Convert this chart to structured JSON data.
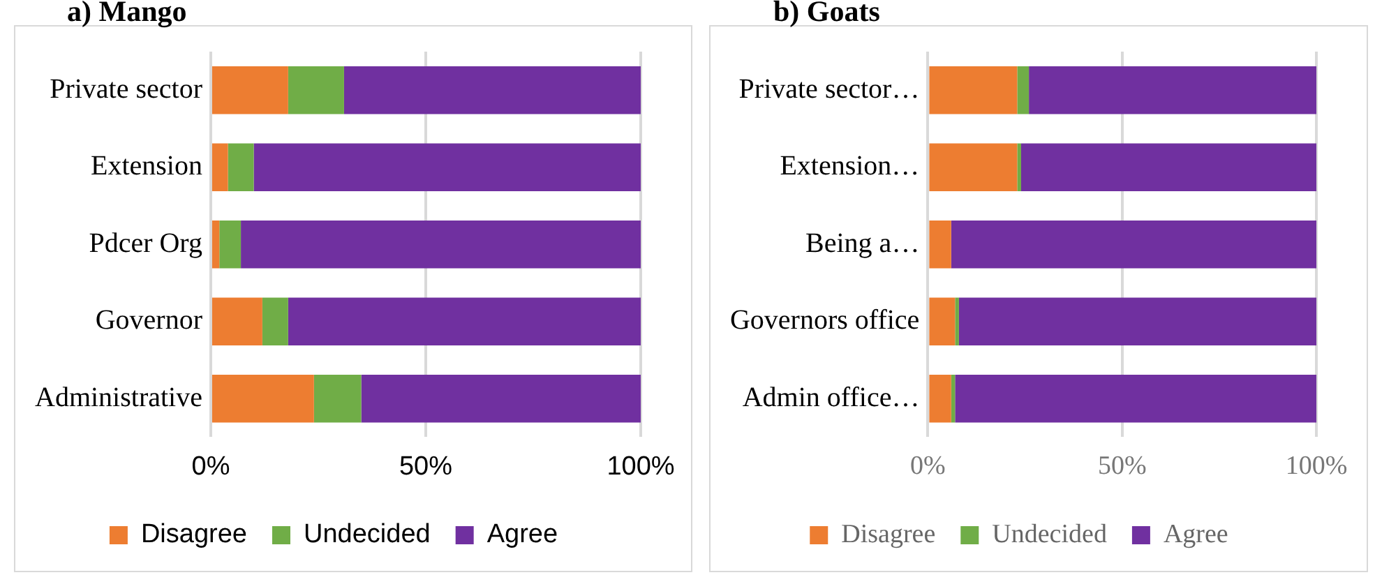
{
  "chart_data": [
    {
      "type": "bar",
      "title": "a) Mango",
      "orientation": "horizontal",
      "stacked": true,
      "categories": [
        "Private sector",
        "Extension",
        "Pdcer Org",
        "Governor",
        "Administrative"
      ],
      "series": [
        {
          "name": "Disagree",
          "color": "#ed7d31",
          "values": [
            18,
            4,
            2,
            12,
            24
          ]
        },
        {
          "name": "Undecided",
          "color": "#70ad47",
          "values": [
            13,
            6,
            5,
            6,
            11
          ]
        },
        {
          "name": "Agree",
          "color": "#7030a0",
          "values": [
            69,
            90,
            93,
            82,
            65
          ]
        }
      ],
      "xlim": [
        0,
        100
      ],
      "xticks": [
        {
          "value": 0,
          "label": "0%"
        },
        {
          "value": 50,
          "label": "50%"
        },
        {
          "value": 100,
          "label": "100%"
        }
      ],
      "grid": "x",
      "legend": "bottom"
    },
    {
      "type": "bar",
      "title": "b) Goats",
      "orientation": "horizontal",
      "stacked": true,
      "categories": [
        "Private sector…",
        "Extension…",
        "Being a…",
        "Governors office",
        "Admin office…"
      ],
      "series": [
        {
          "name": "Disagree",
          "color": "#ed7d31",
          "values": [
            23,
            23,
            6,
            7,
            6
          ]
        },
        {
          "name": "Undecided",
          "color": "#70ad47",
          "values": [
            3,
            1,
            0,
            1,
            1
          ]
        },
        {
          "name": "Agree",
          "color": "#7030a0",
          "values": [
            74,
            76,
            94,
            92,
            93
          ]
        }
      ],
      "xlim": [
        0,
        100
      ],
      "xticks": [
        {
          "value": 0,
          "label": "0%"
        },
        {
          "value": 50,
          "label": "50%"
        },
        {
          "value": 100,
          "label": "100%"
        }
      ],
      "grid": "x",
      "legend": "bottom"
    }
  ]
}
